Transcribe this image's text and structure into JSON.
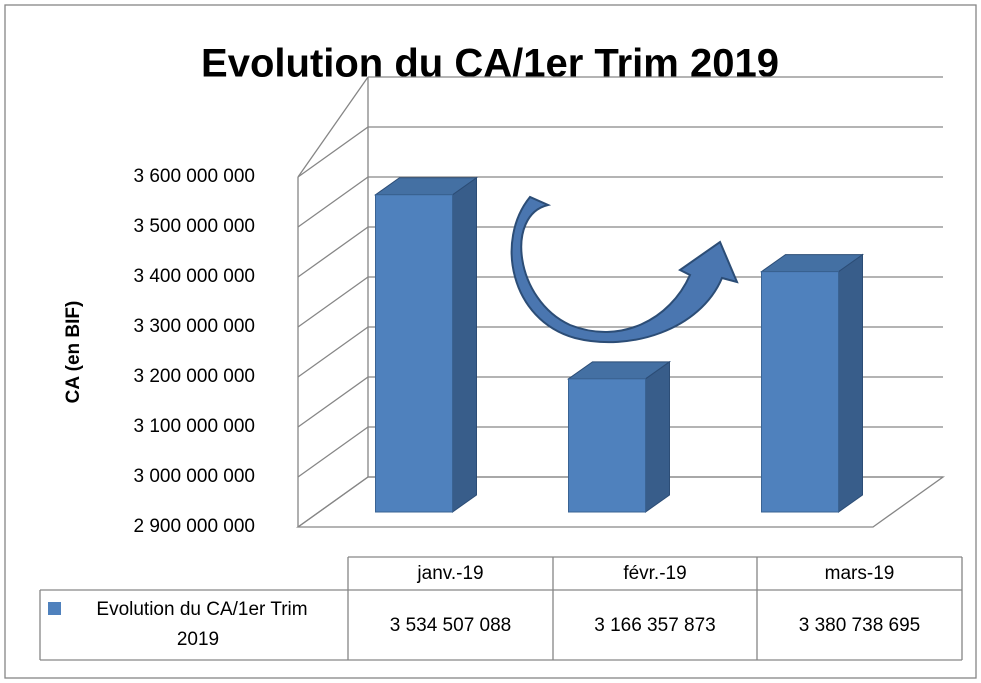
{
  "chart_data": {
    "type": "bar3d",
    "title": "Evolution du CA/1er Trim 2019",
    "y_label": "CA (en BIF)",
    "categories": [
      "janv.-19",
      "févr.-19",
      "mars-19"
    ],
    "series": [
      {
        "name": "Evolution du CA/1er Trim 2019",
        "color": "#4f81bd",
        "values": [
          3534507088,
          3166357873,
          3380738695
        ],
        "value_labels": [
          "3 534 507 088",
          "3 166 357 873",
          "3 380 738 695"
        ]
      }
    ],
    "ylim": [
      2900000000,
      3600000000
    ],
    "yticks": [
      {
        "value": 2900000000,
        "label": "2 900 000 000"
      },
      {
        "value": 3000000000,
        "label": "3 000 000 000"
      },
      {
        "value": 3100000000,
        "label": "3 100 000 000"
      },
      {
        "value": 3200000000,
        "label": "3 200 000 000"
      },
      {
        "value": 3300000000,
        "label": "3 300 000 000"
      },
      {
        "value": 3400000000,
        "label": "3 400 000 000"
      },
      {
        "value": 3500000000,
        "label": "3 500 000 000"
      },
      {
        "value": 3600000000,
        "label": "3 600 000 000"
      }
    ],
    "grid": true
  }
}
